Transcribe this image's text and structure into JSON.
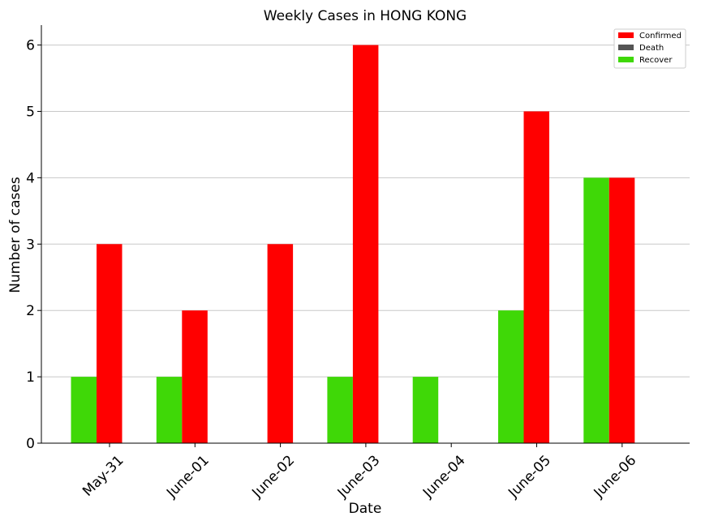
{
  "chart_data": {
    "type": "bar",
    "title": "Weekly Cases in HONG KONG",
    "xlabel": "Date",
    "ylabel": "Number of cases",
    "categories": [
      "May-31",
      "June-01",
      "June-02",
      "June-03",
      "June-04",
      "June-05",
      "June-06"
    ],
    "series": [
      {
        "name": "Confirmed",
        "color": "#ff0000",
        "values": [
          3,
          2,
          3,
          6,
          0,
          5,
          4
        ]
      },
      {
        "name": "Death",
        "color": "#555555",
        "values": [
          0,
          0,
          0,
          0,
          0,
          0,
          0
        ]
      },
      {
        "name": "Recover",
        "color": "#3fd807",
        "values": [
          1,
          1,
          0,
          1,
          1,
          2,
          4
        ]
      }
    ],
    "ylim": [
      0,
      6.3
    ],
    "yticks": [
      0,
      1,
      2,
      3,
      4,
      5,
      6
    ],
    "grid": "horizontal",
    "legend_position": "top-right"
  }
}
